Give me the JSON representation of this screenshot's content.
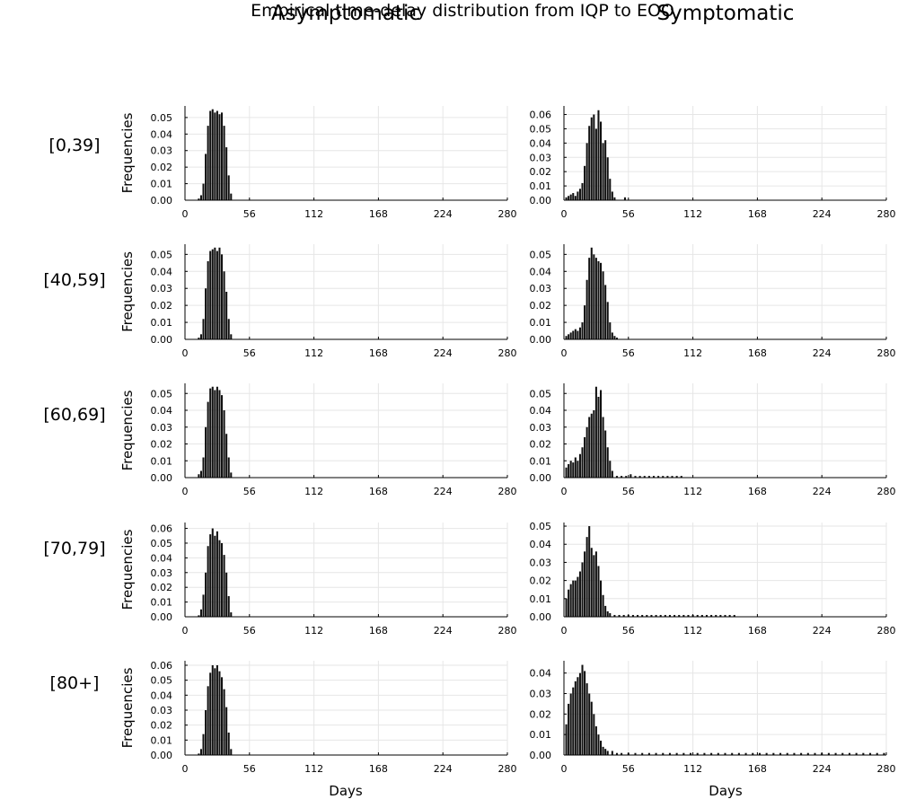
{
  "figure": {
    "suptitle": "Empirical time-delay distribution from IQP to EOO",
    "column_titles": [
      "Asymptomatic",
      "Symptomatic"
    ],
    "row_labels": [
      "[0,39]",
      "[40,59]",
      "[60,69]",
      "[70,79]",
      "[80+]"
    ],
    "ylabel": "Frequencies",
    "xlabel": "Days"
  },
  "colors": {
    "bars": "#111111",
    "grid": "#e6e6e6",
    "axis": "#000000"
  },
  "chart_data": [
    {
      "type": "bar",
      "group": "[0,39]",
      "panel": "Asymptomatic",
      "xlim": [
        0,
        280
      ],
      "xticks": [
        0,
        56,
        112,
        168,
        224,
        280
      ],
      "yticks": [
        0.0,
        0.01,
        0.02,
        0.03,
        0.04,
        0.05
      ],
      "ylim": [
        0,
        0.057
      ],
      "grid": true,
      "x": [
        12,
        14,
        16,
        18,
        20,
        22,
        24,
        26,
        28,
        30,
        32,
        34,
        36,
        38,
        40
      ],
      "values": [
        0.001,
        0.003,
        0.01,
        0.028,
        0.045,
        0.054,
        0.055,
        0.053,
        0.054,
        0.052,
        0.053,
        0.045,
        0.032,
        0.015,
        0.004
      ]
    },
    {
      "type": "bar",
      "group": "[0,39]",
      "panel": "Symptomatic",
      "xlim": [
        0,
        280
      ],
      "xticks": [
        0,
        56,
        112,
        168,
        224,
        280
      ],
      "yticks": [
        0.0,
        0.01,
        0.02,
        0.03,
        0.04,
        0.05,
        0.06
      ],
      "ylim": [
        0,
        0.066
      ],
      "grid": true,
      "x": [
        2,
        4,
        6,
        8,
        10,
        12,
        14,
        16,
        18,
        20,
        22,
        24,
        26,
        28,
        30,
        32,
        34,
        36,
        38,
        40,
        42,
        44,
        53
      ],
      "values": [
        0.002,
        0.003,
        0.004,
        0.005,
        0.003,
        0.006,
        0.008,
        0.012,
        0.024,
        0.04,
        0.052,
        0.058,
        0.06,
        0.05,
        0.063,
        0.055,
        0.04,
        0.042,
        0.03,
        0.015,
        0.006,
        0.002,
        0.002
      ]
    },
    {
      "type": "bar",
      "group": "[40,59]",
      "panel": "Asymptomatic",
      "xlim": [
        0,
        280
      ],
      "xticks": [
        0,
        56,
        112,
        168,
        224,
        280
      ],
      "yticks": [
        0.0,
        0.01,
        0.02,
        0.03,
        0.04,
        0.05
      ],
      "ylim": [
        0,
        0.056
      ],
      "grid": true,
      "x": [
        12,
        14,
        16,
        18,
        20,
        22,
        24,
        26,
        28,
        30,
        32,
        34,
        36,
        38,
        40
      ],
      "values": [
        0.001,
        0.003,
        0.012,
        0.03,
        0.046,
        0.052,
        0.053,
        0.054,
        0.052,
        0.054,
        0.05,
        0.04,
        0.028,
        0.012,
        0.003
      ]
    },
    {
      "type": "bar",
      "group": "[40,59]",
      "panel": "Symptomatic",
      "xlim": [
        0,
        280
      ],
      "xticks": [
        0,
        56,
        112,
        168,
        224,
        280
      ],
      "yticks": [
        0.0,
        0.01,
        0.02,
        0.03,
        0.04,
        0.05
      ],
      "ylim": [
        0,
        0.056
      ],
      "grid": true,
      "x": [
        2,
        4,
        6,
        8,
        10,
        12,
        14,
        16,
        18,
        20,
        22,
        24,
        26,
        28,
        30,
        32,
        34,
        36,
        38,
        40,
        42,
        44,
        46
      ],
      "values": [
        0.002,
        0.003,
        0.004,
        0.005,
        0.006,
        0.005,
        0.007,
        0.01,
        0.02,
        0.035,
        0.048,
        0.054,
        0.05,
        0.048,
        0.046,
        0.045,
        0.04,
        0.032,
        0.022,
        0.01,
        0.004,
        0.002,
        0.001
      ]
    },
    {
      "type": "bar",
      "group": "[60,69]",
      "panel": "Asymptomatic",
      "xlim": [
        0,
        280
      ],
      "xticks": [
        0,
        56,
        112,
        168,
        224,
        280
      ],
      "yticks": [
        0.0,
        0.01,
        0.02,
        0.03,
        0.04,
        0.05
      ],
      "ylim": [
        0,
        0.056
      ],
      "grid": true,
      "x": [
        12,
        14,
        16,
        18,
        20,
        22,
        24,
        26,
        28,
        30,
        32,
        34,
        36,
        38,
        40
      ],
      "values": [
        0.002,
        0.004,
        0.012,
        0.03,
        0.045,
        0.053,
        0.054,
        0.052,
        0.054,
        0.052,
        0.049,
        0.04,
        0.026,
        0.012,
        0.003
      ]
    },
    {
      "type": "bar",
      "group": "[60,69]",
      "panel": "Symptomatic",
      "xlim": [
        0,
        280
      ],
      "xticks": [
        0,
        56,
        112,
        168,
        224,
        280
      ],
      "yticks": [
        0.0,
        0.01,
        0.02,
        0.03,
        0.04,
        0.05
      ],
      "ylim": [
        0,
        0.056
      ],
      "grid": true,
      "x": [
        2,
        4,
        6,
        8,
        10,
        12,
        14,
        16,
        18,
        20,
        22,
        24,
        26,
        28,
        30,
        32,
        34,
        36,
        38,
        40,
        42,
        46,
        50,
        54,
        58,
        62,
        66,
        70,
        74,
        78,
        82,
        86,
        90,
        94,
        98,
        102
      ],
      "values": [
        0.006,
        0.008,
        0.01,
        0.009,
        0.012,
        0.01,
        0.014,
        0.018,
        0.024,
        0.03,
        0.036,
        0.038,
        0.04,
        0.054,
        0.048,
        0.052,
        0.036,
        0.028,
        0.018,
        0.01,
        0.004,
        0.001,
        0.001,
        0.001,
        0.002,
        0.001,
        0.001,
        0.001,
        0.001,
        0.001,
        0.001,
        0.001,
        0.001,
        0.001,
        0.001,
        0.001
      ]
    },
    {
      "type": "bar",
      "group": "[70,79]",
      "panel": "Asymptomatic",
      "xlim": [
        0,
        280
      ],
      "xticks": [
        0,
        56,
        112,
        168,
        224,
        280
      ],
      "yticks": [
        0.0,
        0.01,
        0.02,
        0.03,
        0.04,
        0.05,
        0.06
      ],
      "ylim": [
        0,
        0.064
      ],
      "grid": true,
      "x": [
        12,
        14,
        16,
        18,
        20,
        22,
        24,
        26,
        28,
        30,
        32,
        34,
        36,
        38,
        40
      ],
      "values": [
        0.001,
        0.005,
        0.015,
        0.03,
        0.048,
        0.056,
        0.06,
        0.055,
        0.058,
        0.052,
        0.05,
        0.042,
        0.03,
        0.014,
        0.003
      ]
    },
    {
      "type": "bar",
      "group": "[70,79]",
      "panel": "Symptomatic",
      "xlim": [
        0,
        280
      ],
      "xticks": [
        0,
        56,
        112,
        168,
        224,
        280
      ],
      "yticks": [
        0.0,
        0.01,
        0.02,
        0.03,
        0.04,
        0.05
      ],
      "ylim": [
        0,
        0.052
      ],
      "grid": true,
      "x": [
        2,
        4,
        6,
        8,
        10,
        12,
        14,
        16,
        18,
        20,
        22,
        24,
        26,
        28,
        30,
        32,
        34,
        36,
        38,
        40,
        44,
        48,
        52,
        56,
        60,
        64,
        68,
        72,
        76,
        80,
        84,
        88,
        92,
        96,
        100,
        104,
        108,
        112,
        116,
        120,
        124,
        128,
        132,
        136,
        140,
        144,
        148
      ],
      "values": [
        0.01,
        0.015,
        0.018,
        0.02,
        0.02,
        0.022,
        0.025,
        0.03,
        0.036,
        0.044,
        0.05,
        0.038,
        0.034,
        0.036,
        0.028,
        0.02,
        0.012,
        0.006,
        0.003,
        0.002,
        0.001,
        0.001,
        0.001,
        0.001,
        0.001,
        0.001,
        0.001,
        0.001,
        0.001,
        0.001,
        0.001,
        0.001,
        0.001,
        0.001,
        0.001,
        0.001,
        0.001,
        0.001,
        0.001,
        0.001,
        0.001,
        0.001,
        0.001,
        0.001,
        0.001,
        0.001,
        0.001
      ]
    },
    {
      "type": "bar",
      "group": "[80+]",
      "panel": "Asymptomatic",
      "xlim": [
        0,
        280
      ],
      "xticks": [
        0,
        56,
        112,
        168,
        224,
        280
      ],
      "yticks": [
        0.0,
        0.01,
        0.02,
        0.03,
        0.04,
        0.05,
        0.06
      ],
      "ylim": [
        0,
        0.063
      ],
      "grid": true,
      "x": [
        12,
        14,
        16,
        18,
        20,
        22,
        24,
        26,
        28,
        30,
        32,
        34,
        36,
        38,
        40
      ],
      "values": [
        0.001,
        0.004,
        0.014,
        0.03,
        0.046,
        0.055,
        0.06,
        0.058,
        0.06,
        0.056,
        0.052,
        0.044,
        0.032,
        0.015,
        0.004
      ]
    },
    {
      "type": "bar",
      "group": "[80+]",
      "panel": "Symptomatic",
      "xlim": [
        0,
        280
      ],
      "xticks": [
        0,
        56,
        112,
        168,
        224,
        280
      ],
      "yticks": [
        0.0,
        0.01,
        0.02,
        0.03,
        0.04
      ],
      "ylim": [
        0,
        0.046
      ],
      "grid": true,
      "x": [
        2,
        4,
        6,
        8,
        10,
        12,
        14,
        16,
        18,
        20,
        22,
        24,
        26,
        28,
        30,
        32,
        34,
        36,
        38,
        42,
        46,
        50,
        56,
        62,
        68,
        74,
        80,
        86,
        92,
        98,
        104,
        110,
        116,
        122,
        128,
        134,
        140,
        146,
        152,
        158,
        164,
        170,
        176,
        182,
        188,
        194,
        200,
        206,
        212,
        218,
        224,
        230,
        236,
        242,
        248,
        254,
        260,
        266,
        272,
        278
      ],
      "values": [
        0.015,
        0.025,
        0.03,
        0.033,
        0.036,
        0.038,
        0.04,
        0.044,
        0.041,
        0.035,
        0.03,
        0.026,
        0.02,
        0.014,
        0.01,
        0.007,
        0.004,
        0.003,
        0.002,
        0.002,
        0.001,
        0.001,
        0.001,
        0.001,
        0.001,
        0.001,
        0.001,
        0.001,
        0.001,
        0.001,
        0.001,
        0.001,
        0.001,
        0.001,
        0.001,
        0.001,
        0.001,
        0.001,
        0.001,
        0.001,
        0.001,
        0.001,
        0.001,
        0.001,
        0.001,
        0.001,
        0.001,
        0.001,
        0.001,
        0.001,
        0.001,
        0.001,
        0.001,
        0.001,
        0.001,
        0.001,
        0.001,
        0.001,
        0.001,
        0.001
      ]
    }
  ]
}
